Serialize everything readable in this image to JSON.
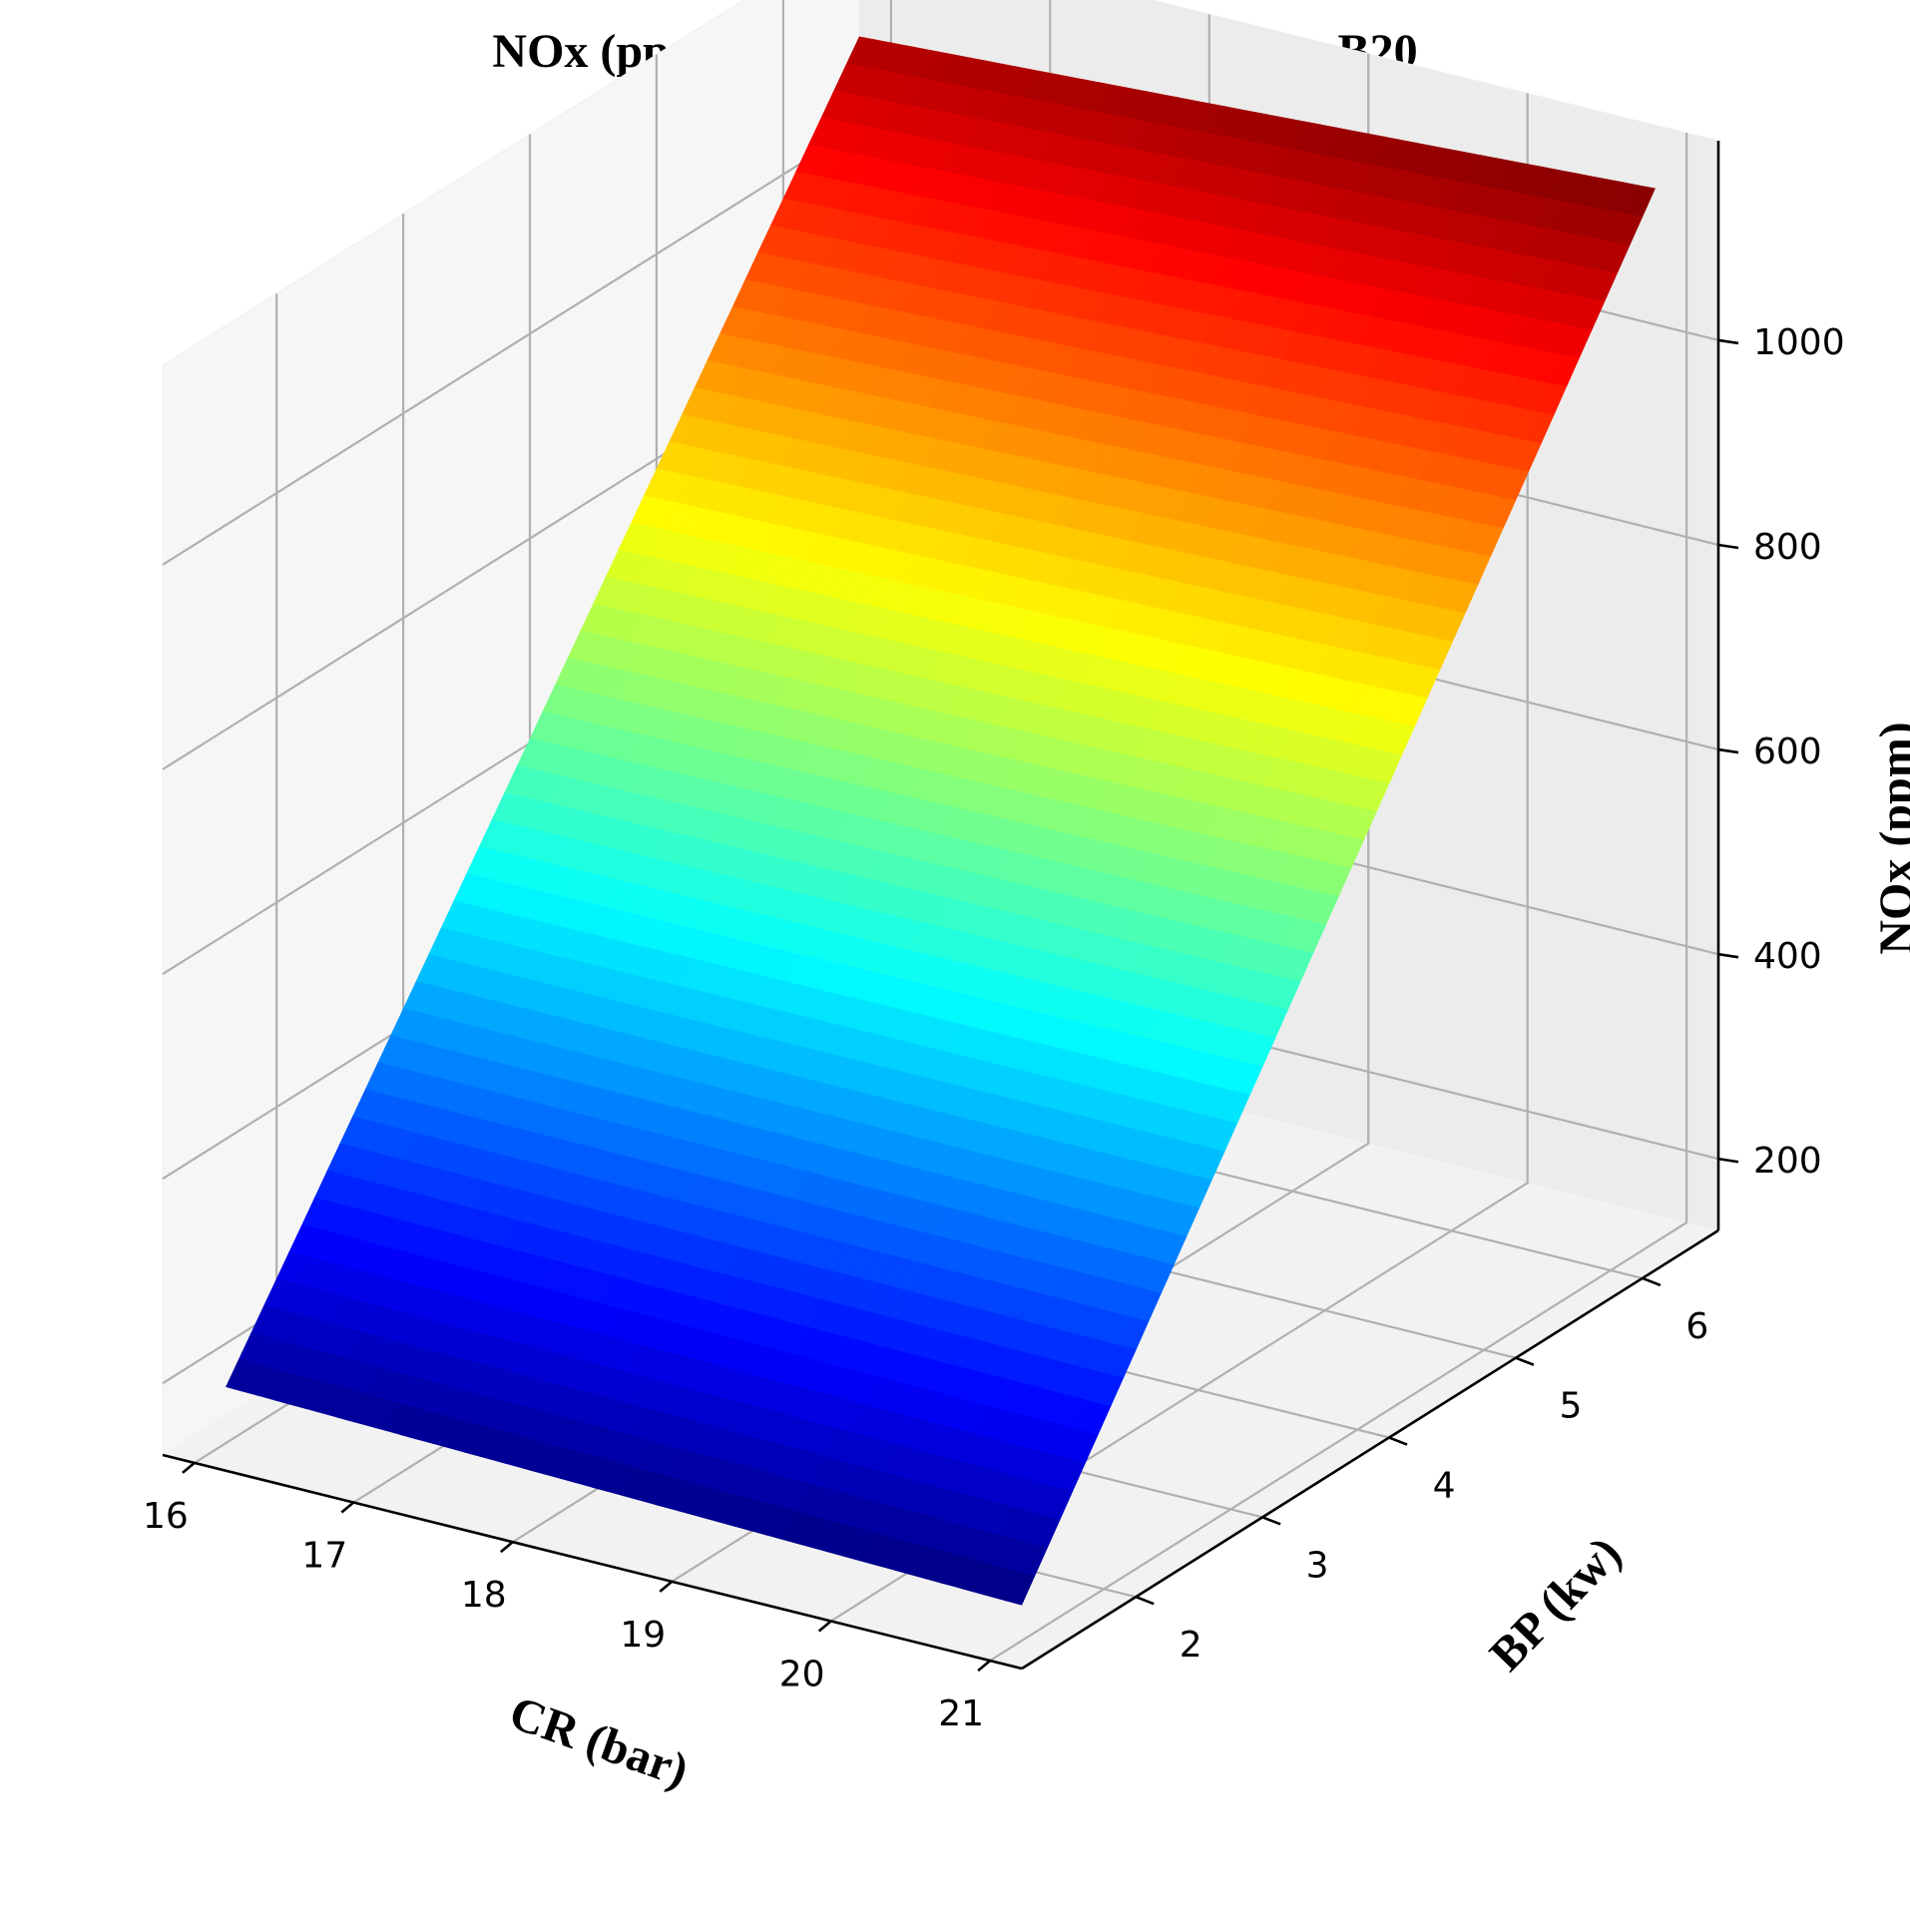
{
  "chart_data": {
    "type": "surface",
    "title": "NOx (ppm) vs. CR (bar) and BP (kw) for B20",
    "xlabel": "CR (bar)",
    "ylabel": "BP (kw)",
    "zlabel": "NOx (ppm)",
    "xlim": [
      15.8,
      21.2
    ],
    "ylim": [
      1.1,
      6.6
    ],
    "zlim": [
      130,
      1195
    ],
    "x_ticks": [
      "16",
      "17",
      "18",
      "19",
      "20",
      "21"
    ],
    "y_ticks": [
      "2",
      "3",
      "4",
      "5",
      "6"
    ],
    "z_ticks": [
      "200",
      "400",
      "600",
      "800",
      "1000"
    ],
    "colormap": "jet",
    "grid": true,
    "surface_corners": [
      {
        "cr": 16,
        "bp": 1.35,
        "nox": 185
      },
      {
        "cr": 21,
        "bp": 1.35,
        "nox": 165
      },
      {
        "cr": 16,
        "bp": 6.35,
        "nox": 1115
      },
      {
        "cr": 21,
        "bp": 6.35,
        "nox": 1160
      }
    ]
  }
}
